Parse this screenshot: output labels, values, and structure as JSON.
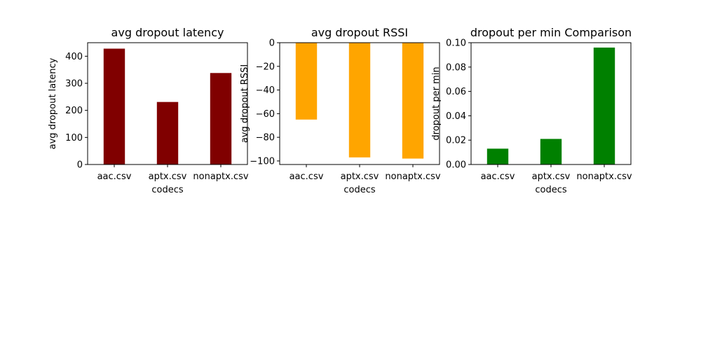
{
  "chart_data": [
    {
      "type": "bar",
      "title": "avg dropout latency",
      "xlabel": "codecs",
      "ylabel": "avg dropout latency",
      "categories": [
        "aac.csv",
        "aptx.csv",
        "nonaptx.csv"
      ],
      "values": [
        428,
        231,
        338
      ],
      "ylim": [
        0,
        450
      ],
      "yticks": [
        0,
        100,
        200,
        300,
        400
      ],
      "ytick_labels": [
        "0",
        "100",
        "200",
        "300",
        "400"
      ],
      "color": "#800000",
      "grid": false
    },
    {
      "type": "bar",
      "title": "avg dropout RSSI",
      "xlabel": "codecs",
      "ylabel": "avg dropout RSSI",
      "categories": [
        "aac.csv",
        "aptx.csv",
        "nonaptx.csv"
      ],
      "values": [
        -65,
        -97,
        -98
      ],
      "ylim": [
        -103,
        0
      ],
      "yticks": [
        0,
        -20,
        -40,
        -60,
        -80,
        -100
      ],
      "ytick_labels": [
        "0",
        "−20",
        "−40",
        "−60",
        "−80",
        "−100"
      ],
      "color": "#ffa500",
      "grid": false
    },
    {
      "type": "bar",
      "title": "dropout per min  Comparison",
      "xlabel": "codecs",
      "ylabel": "dropout per min",
      "categories": [
        "aac.csv",
        "aptx.csv",
        "nonaptx.csv"
      ],
      "values": [
        0.013,
        0.021,
        0.096
      ],
      "ylim": [
        0,
        0.1
      ],
      "yticks": [
        0,
        0.02,
        0.04,
        0.06,
        0.08,
        0.1
      ],
      "ytick_labels": [
        "0.00",
        "0.02",
        "0.04",
        "0.06",
        "0.08",
        "0.10"
      ],
      "color": "#008000",
      "grid": false
    }
  ]
}
